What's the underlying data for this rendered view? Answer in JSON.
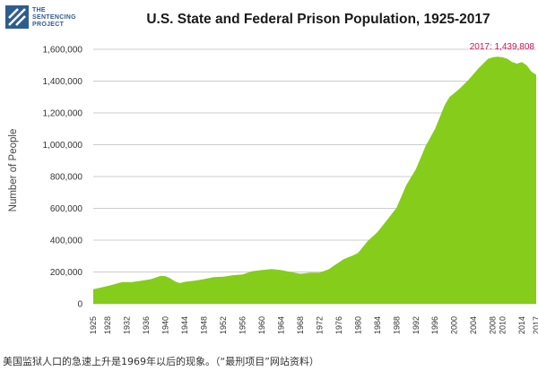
{
  "brand": {
    "line1": "THE",
    "line2": "SENTENCING",
    "line3": "PROJECT"
  },
  "colors": {
    "area": "#86cc1b",
    "annotation": "#c2185b",
    "grid": "#cccccc"
  },
  "caption": "美国监狱人口的急速上升是1969年以后的现象。（“最刑项目”网站资料）",
  "chart_data": {
    "type": "area",
    "title": "U.S. State and Federal Prison Population, 1925-2017",
    "xlabel": "",
    "ylabel": "Number of People",
    "ylim": [
      0,
      1600000
    ],
    "yticks": [
      0,
      200000,
      400000,
      600000,
      800000,
      1000000,
      1200000,
      1400000,
      1600000
    ],
    "ytick_labels": [
      "0",
      "200,000",
      "400,000",
      "600,000",
      "800,000",
      "1,000,000",
      "1,200,000",
      "1,400,000",
      "1,600,000"
    ],
    "xticks": [
      1925,
      1928,
      1932,
      1936,
      1940,
      1944,
      1948,
      1952,
      1956,
      1960,
      1964,
      1968,
      1972,
      1976,
      1980,
      1984,
      1988,
      1992,
      1996,
      2000,
      2004,
      2008,
      2010,
      2014,
      2017
    ],
    "grid": "horizontal",
    "annotation": "2017: 1,439,808",
    "series": [
      {
        "x": [
          1925,
          1927,
          1929,
          1931,
          1933,
          1935,
          1937,
          1939,
          1940,
          1941,
          1942,
          1943,
          1944,
          1946,
          1948,
          1950,
          1952,
          1954,
          1956,
          1958,
          1960,
          1962,
          1963,
          1964,
          1966,
          1968,
          1970,
          1972,
          1974,
          1975,
          1977,
          1979,
          1980,
          1982,
          1984,
          1986,
          1988,
          1990,
          1992,
          1994,
          1996,
          1998,
          1999,
          2001,
          2003,
          2005,
          2007,
          2008,
          2009,
          2010,
          2011,
          2012,
          2013,
          2014,
          2015,
          2016,
          2017
        ],
        "y": [
          91669,
          105000,
          120000,
          137000,
          137000,
          145000,
          155000,
          175000,
          174000,
          160000,
          140000,
          130000,
          138000,
          145000,
          155000,
          168000,
          170000,
          180000,
          185000,
          205000,
          212000,
          218000,
          215000,
          212000,
          200000,
          189000,
          196000,
          196000,
          218000,
          240000,
          280000,
          305000,
          319598,
          395000,
          450000,
          525000,
          604000,
          745000,
          847000,
          990000,
          1100000,
          1250000,
          1300000,
          1350000,
          1410000,
          1480000,
          1540000,
          1550000,
          1553000,
          1550000,
          1540000,
          1520000,
          1510000,
          1520000,
          1500000,
          1460000,
          1439808
        ]
      }
    ]
  }
}
